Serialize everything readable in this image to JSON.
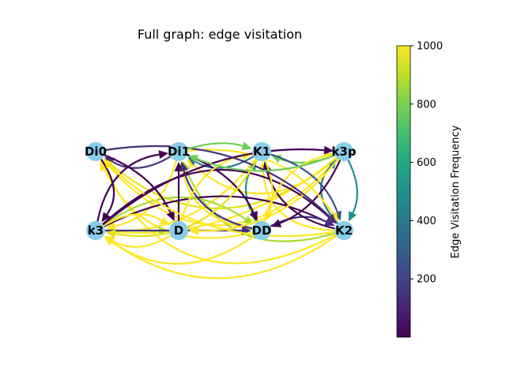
{
  "title": "Full graph: edge visitation",
  "colorbar": {
    "label": "Edge Visitation Frequency",
    "ticks": [
      "200",
      "400",
      "600",
      "800",
      "1000"
    ],
    "range": [
      0,
      1000
    ]
  },
  "node_color": "#87ceeb",
  "nodes": [
    {
      "id": "Di0",
      "label": "Di0"
    },
    {
      "id": "Di1",
      "label": "Di1"
    },
    {
      "id": "K1",
      "label": "K1"
    },
    {
      "id": "k3p",
      "label": "k3p"
    },
    {
      "id": "k3",
      "label": "k3"
    },
    {
      "id": "D",
      "label": "D"
    },
    {
      "id": "DD",
      "label": "DD"
    },
    {
      "id": "K2",
      "label": "K2"
    }
  ]
}
